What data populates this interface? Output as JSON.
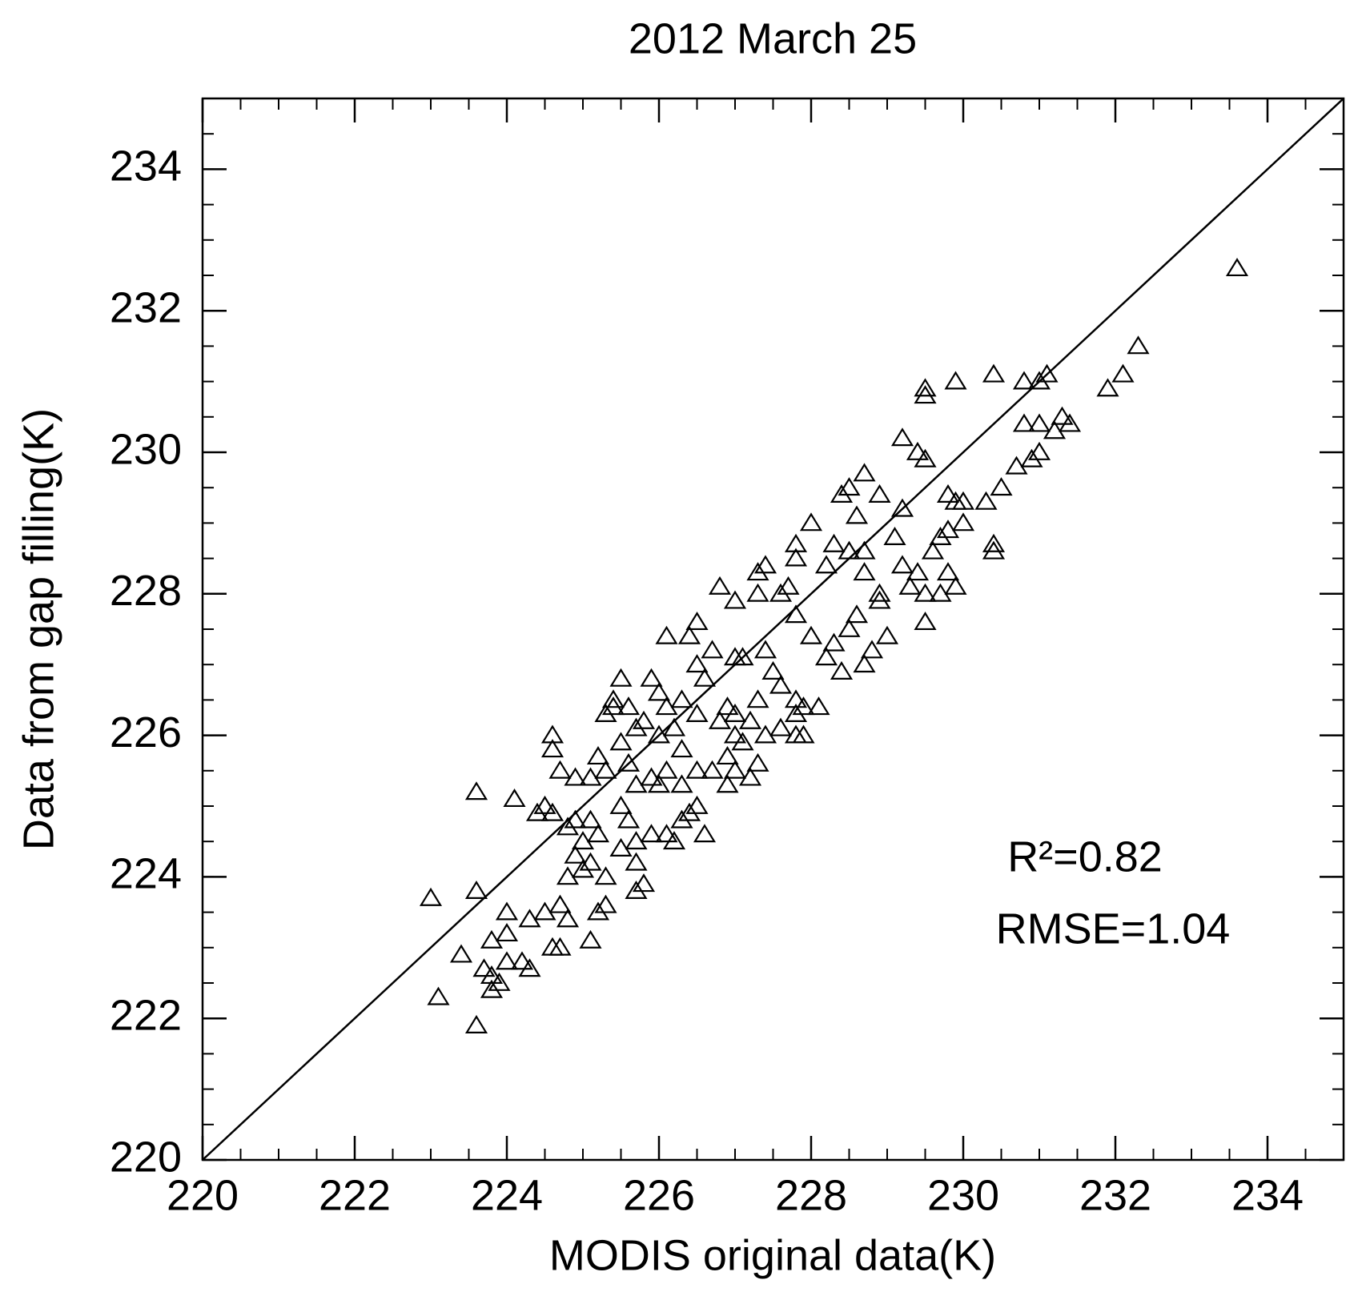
{
  "chart_data": {
    "type": "scatter",
    "title": "2012 March 25",
    "x_label": "MODIS original data(K)",
    "y_label": "Data from gap filling(K)",
    "annotations": [
      "R²=0.82",
      "RMSE=1.04"
    ],
    "marker": "triangle-open",
    "color": "#000000",
    "identity_line": true,
    "xlim": [
      220,
      235
    ],
    "ylim": [
      220,
      235
    ],
    "xticks": [
      220,
      222,
      224,
      226,
      228,
      230,
      232,
      234
    ],
    "yticks": [
      220,
      222,
      224,
      226,
      228,
      230,
      232,
      234
    ],
    "x": [
      233.6,
      232.3,
      232.1,
      231.9,
      231.4,
      231.3,
      231.1,
      231.0,
      230.8,
      230.4,
      229.9,
      229.5,
      229.5,
      231.0,
      230.8,
      231.2,
      231.0,
      230.9,
      230.7,
      230.5,
      230.3,
      230.0,
      229.9,
      230.0,
      229.8,
      229.2,
      229.4,
      229.5,
      229.2,
      228.9,
      228.7,
      228.5,
      228.4,
      228.6,
      228.0,
      228.3,
      228.5,
      228.7,
      229.1,
      229.2,
      229.4,
      229.3,
      229.6,
      229.7,
      229.8,
      229.8,
      229.9,
      229.7,
      230.4,
      230.4,
      229.5,
      229.5,
      228.9,
      228.7,
      228.2,
      228.5,
      228.6,
      228.3,
      228.2,
      228.4,
      228.7,
      228.8,
      229.0,
      228.9,
      228.0,
      227.8,
      227.6,
      227.7,
      227.8,
      227.8,
      227.4,
      227.3,
      227.3,
      227.0,
      226.8,
      226.5,
      227.1,
      227.0,
      227.4,
      227.5,
      227.6,
      227.3,
      227.2,
      227.4,
      227.6,
      227.8,
      227.9,
      227.8,
      227.9,
      228.1,
      227.8,
      226.9,
      226.8,
      227.0,
      226.9,
      226.7,
      226.9,
      227.0,
      227.2,
      227.3,
      227.1,
      226.5,
      226.3,
      226.1,
      226.0,
      226.3,
      226.5,
      226.3,
      226.1,
      226.0,
      226.6,
      226.5,
      226.1,
      226.4,
      226.7,
      225.5,
      225.4,
      225.3,
      225.4,
      225.6,
      225.8,
      225.9,
      225.7,
      225.5,
      226.0,
      225.9,
      225.7,
      225.6,
      225.3,
      225.1,
      224.7,
      224.9,
      224.6,
      224.6,
      225.5,
      225.6,
      225.9,
      226.1,
      226.2,
      226.3,
      226.4,
      226.6,
      225.7,
      225.7,
      225.5,
      225.8,
      225.7,
      225.3,
      225.1,
      225.0,
      224.9,
      224.8,
      225.1,
      225.2,
      224.6,
      224.4,
      224.5,
      223.6,
      224.1,
      224.8,
      224.7,
      224.5,
      224.3,
      224.8,
      225.2,
      225.3,
      224.6,
      224.7,
      225.1,
      224.0,
      223.8,
      223.6,
      223.0,
      223.4,
      223.7,
      223.8,
      223.8,
      223.9,
      224.0,
      224.2,
      224.3,
      224.0,
      223.1,
      223.6,
      224.9,
      225.0,
      225.2,
      226.5,
      227.0,
      226.2
    ],
    "values": [
      232.6,
      231.5,
      231.1,
      230.9,
      230.4,
      230.5,
      231.1,
      231.0,
      231.0,
      231.1,
      231.0,
      230.8,
      230.9,
      230.4,
      230.4,
      230.3,
      230.0,
      229.9,
      229.8,
      229.5,
      229.3,
      229.3,
      229.3,
      229.0,
      229.4,
      230.2,
      230.0,
      229.9,
      229.2,
      229.4,
      229.7,
      229.5,
      229.4,
      229.1,
      229.0,
      228.7,
      228.6,
      228.6,
      228.8,
      228.4,
      228.3,
      228.1,
      228.6,
      228.8,
      228.9,
      228.3,
      228.1,
      228.0,
      228.7,
      228.6,
      228.0,
      227.6,
      228.0,
      228.3,
      228.4,
      227.5,
      227.7,
      227.3,
      227.1,
      226.9,
      227.0,
      227.2,
      227.4,
      227.9,
      227.4,
      227.7,
      228.0,
      228.1,
      228.5,
      228.7,
      228.4,
      228.0,
      228.3,
      227.9,
      228.1,
      227.6,
      227.1,
      227.1,
      227.2,
      226.9,
      226.7,
      226.5,
      226.2,
      226.0,
      226.1,
      226.0,
      226.0,
      226.3,
      226.4,
      226.4,
      226.5,
      226.4,
      226.2,
      226.0,
      225.7,
      225.5,
      225.3,
      225.5,
      225.4,
      225.6,
      225.9,
      225.5,
      225.3,
      225.5,
      225.3,
      225.8,
      226.3,
      226.5,
      226.4,
      226.6,
      226.8,
      227.0,
      227.4,
      227.4,
      227.2,
      226.8,
      226.4,
      226.3,
      226.5,
      226.4,
      226.2,
      226.8,
      226.1,
      225.9,
      226.0,
      225.4,
      225.3,
      225.6,
      225.5,
      225.4,
      225.5,
      225.4,
      225.8,
      226.0,
      225.0,
      224.8,
      224.6,
      224.6,
      224.5,
      224.8,
      224.9,
      224.6,
      224.5,
      224.2,
      224.4,
      223.9,
      223.8,
      224.0,
      224.2,
      224.5,
      224.8,
      224.7,
      224.8,
      224.6,
      224.9,
      224.9,
      225.0,
      225.2,
      225.1,
      224.0,
      223.6,
      223.5,
      223.4,
      223.4,
      223.5,
      223.6,
      223.0,
      223.0,
      223.1,
      223.5,
      223.1,
      223.8,
      223.7,
      222.9,
      222.7,
      222.6,
      222.4,
      222.5,
      222.8,
      222.8,
      222.7,
      223.2,
      222.3,
      221.9,
      224.3,
      224.1,
      225.7,
      225.0,
      226.3,
      226.1
    ]
  }
}
